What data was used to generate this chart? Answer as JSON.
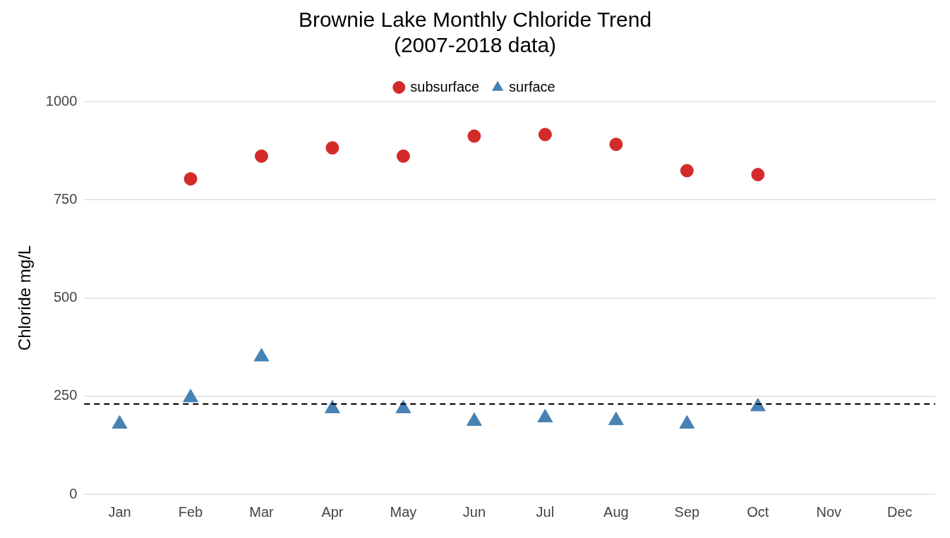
{
  "chart_data": {
    "type": "scatter",
    "title": "Brownie Lake Monthly Chloride Trend\n(2007-2018 data)",
    "ylabel": "Chloride mg/L",
    "categories": [
      "Jan",
      "Feb",
      "Mar",
      "Apr",
      "May",
      "Jun",
      "Jul",
      "Aug",
      "Sep",
      "Oct",
      "Nov",
      "Dec"
    ],
    "series": [
      {
        "name": "subsurface",
        "color": "#d42a2a",
        "marker": "circle",
        "values": [
          null,
          803,
          861,
          882,
          861,
          912,
          916,
          891,
          824,
          814,
          null,
          null
        ]
      },
      {
        "name": "surface",
        "color": "#4682b4",
        "marker": "triangle",
        "values": [
          179,
          246,
          350,
          218,
          218,
          186,
          195,
          188,
          179,
          223,
          null,
          null
        ]
      }
    ],
    "ylim": [
      0,
      1000
    ],
    "yticks": [
      0,
      250,
      500,
      750,
      1000
    ],
    "grid": "y",
    "legend": "top",
    "ref_lines": [
      {
        "axis": "y",
        "value": 230,
        "color": "#000000",
        "line_style": "dashed"
      }
    ]
  }
}
